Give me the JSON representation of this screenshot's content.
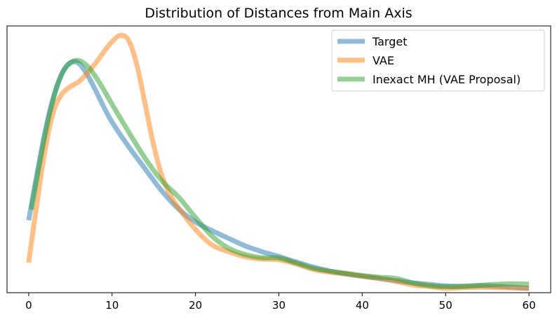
{
  "chart_data": {
    "type": "line",
    "title": "Distribution of Distances from Main Axis",
    "xlabel": "",
    "ylabel": "",
    "xlim": [
      -2.6,
      62.6
    ],
    "ylim": [
      0,
      1
    ],
    "xticks": [
      0,
      10,
      20,
      30,
      40,
      50,
      60
    ],
    "yticks_visible": false,
    "grid": false,
    "legend_position": "top-right",
    "series": [
      {
        "name": "Target",
        "color": "#1f77b4",
        "x": [
          0,
          1,
          2,
          3,
          4,
          5,
          6,
          7,
          8,
          9,
          10,
          12,
          14,
          16,
          18,
          20,
          22,
          24,
          26,
          28,
          30,
          32,
          34,
          36,
          38,
          40,
          42,
          44,
          46,
          48,
          50,
          52,
          54,
          56,
          58,
          60
        ],
        "y": [
          0.271,
          0.451,
          0.618,
          0.749,
          0.838,
          0.88,
          0.877,
          0.835,
          0.774,
          0.709,
          0.65,
          0.555,
          0.468,
          0.383,
          0.314,
          0.265,
          0.231,
          0.201,
          0.172,
          0.15,
          0.132,
          0.111,
          0.092,
          0.076,
          0.064,
          0.055,
          0.047,
          0.038,
          0.03,
          0.024,
          0.018,
          0.017,
          0.019,
          0.017,
          0.013,
          0.008
        ]
      },
      {
        "name": "VAE",
        "color": "#ff7f0e",
        "x": [
          0,
          1,
          2,
          3,
          4,
          5,
          6,
          7,
          8,
          9,
          10,
          11,
          12,
          13,
          14,
          15,
          16,
          17,
          18,
          20,
          22,
          24,
          26,
          28,
          30,
          32,
          34,
          36,
          38,
          40,
          42,
          44,
          46,
          48,
          50,
          52,
          54,
          56,
          58,
          60
        ],
        "y": [
          0.108,
          0.34,
          0.549,
          0.693,
          0.759,
          0.787,
          0.806,
          0.838,
          0.877,
          0.921,
          0.961,
          0.985,
          0.965,
          0.868,
          0.714,
          0.56,
          0.44,
          0.368,
          0.318,
          0.236,
          0.176,
          0.15,
          0.13,
          0.122,
          0.119,
          0.104,
          0.083,
          0.071,
          0.065,
          0.056,
          0.047,
          0.036,
          0.022,
          0.016,
          0.009,
          0.011,
          0.013,
          0.012,
          0.01,
          0.009
        ]
      },
      {
        "name": "Inexact MH (VAE Proposal)",
        "color": "#2ca02c",
        "x": [
          0.3,
          1,
          2,
          3,
          4,
          5,
          6,
          7,
          8,
          9,
          10,
          12,
          14,
          16,
          18,
          20,
          22,
          24,
          26,
          28,
          30,
          32,
          34,
          36,
          38,
          40,
          42,
          44,
          46,
          48,
          50,
          52,
          54,
          56,
          58,
          60
        ],
        "y": [
          0.313,
          0.436,
          0.608,
          0.746,
          0.839,
          0.879,
          0.888,
          0.868,
          0.827,
          0.775,
          0.719,
          0.612,
          0.509,
          0.423,
          0.36,
          0.282,
          0.21,
          0.163,
          0.139,
          0.127,
          0.126,
          0.107,
          0.087,
          0.076,
          0.067,
          0.058,
          0.052,
          0.047,
          0.03,
          0.019,
          0.015,
          0.016,
          0.02,
          0.024,
          0.026,
          0.025
        ]
      }
    ]
  }
}
